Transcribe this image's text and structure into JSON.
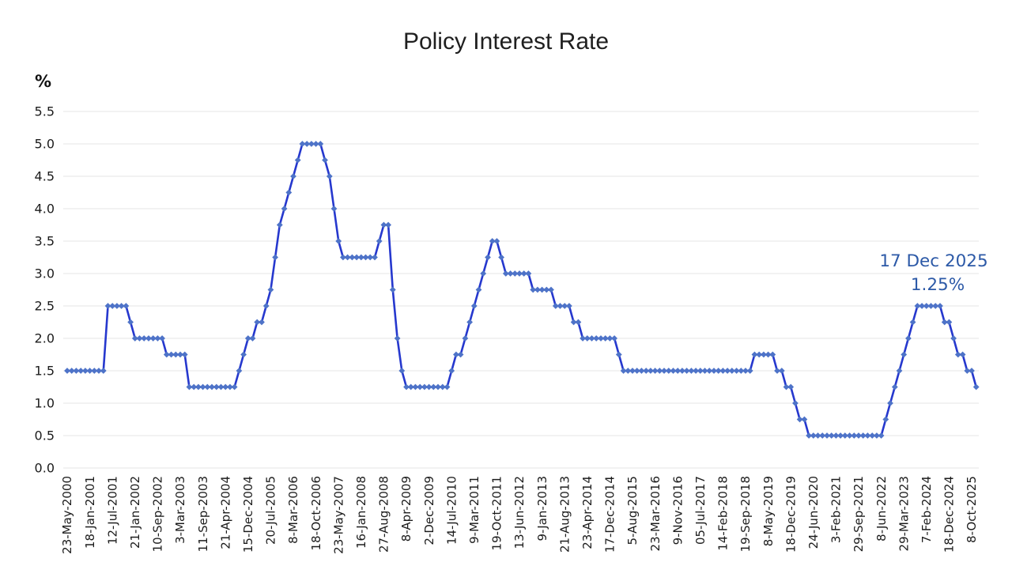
{
  "chart_data": {
    "type": "line",
    "title": "Policy Interest Rate",
    "y_unit_label": "%",
    "xlabel": "",
    "ylabel": "%",
    "ylim": [
      0.0,
      5.5
    ],
    "grid": "horizontal",
    "legend": "none",
    "y_ticks": [
      "0.0",
      "0.5",
      "1.0",
      "1.5",
      "2.0",
      "2.5",
      "3.0",
      "3.5",
      "4.0",
      "4.5",
      "5.0",
      "5.5"
    ],
    "x_tick_labels": [
      "23-May-2000",
      "18-Jan-2001",
      "12-Jul-2001",
      "21-Jan-2002",
      "10-Sep-2002",
      "3-Mar-2003",
      "11-Sep-2003",
      "21-Apr-2004",
      "15-Dec-2004",
      "20-Jul-2005",
      "8-Mar-2006",
      "18-Oct-2006",
      "23-May-2007",
      "16-Jan-2008",
      "27-Aug-2008",
      "8-Apr-2009",
      "2-Dec-2009",
      "14-Jul-2010",
      "9-Mar-2011",
      "19-Oct-2011",
      "13-Jun-2012",
      "9-Jan-2013",
      "21-Aug-2013",
      "23-Apr-2014",
      "17-Dec-2014",
      "5-Aug-2015",
      "23-Mar-2016",
      "9-Nov-2016",
      "05-Jul-2017",
      "14-Feb-2018",
      "19-Sep-2018",
      "8-May-2019",
      "18-Dec-2019",
      "24-Jun-2020",
      "3-Feb-2021",
      "29-Sep-2021",
      "8-Jun-2022",
      "29-Mar-2023",
      "7-Feb-2024",
      "18-Dec-2024",
      "8-Oct-2025"
    ],
    "label_every_n_points": 5,
    "series": [
      {
        "name": "Policy Interest Rate (%)",
        "values_runs": [
          {
            "v": 1.5,
            "n": 9
          },
          {
            "v": 2.5,
            "n": 5
          },
          {
            "v": 2.25,
            "n": 1
          },
          {
            "v": 2.0,
            "n": 7
          },
          {
            "v": 1.75,
            "n": 5
          },
          {
            "v": 1.25,
            "n": 11
          },
          {
            "v": 1.5,
            "n": 1
          },
          {
            "v": 1.75,
            "n": 1
          },
          {
            "v": 2.0,
            "n": 2
          },
          {
            "v": 2.25,
            "n": 2
          },
          {
            "v": 2.5,
            "n": 1
          },
          {
            "v": 2.75,
            "n": 1
          },
          {
            "v": 3.25,
            "n": 1
          },
          {
            "v": 3.75,
            "n": 1
          },
          {
            "v": 4.0,
            "n": 1
          },
          {
            "v": 4.25,
            "n": 1
          },
          {
            "v": 4.5,
            "n": 1
          },
          {
            "v": 4.75,
            "n": 1
          },
          {
            "v": 5.0,
            "n": 5
          },
          {
            "v": 4.75,
            "n": 1
          },
          {
            "v": 4.5,
            "n": 1
          },
          {
            "v": 4.0,
            "n": 1
          },
          {
            "v": 3.5,
            "n": 1
          },
          {
            "v": 3.25,
            "n": 8
          },
          {
            "v": 3.5,
            "n": 1
          },
          {
            "v": 3.75,
            "n": 2
          },
          {
            "v": 2.75,
            "n": 1
          },
          {
            "v": 2.0,
            "n": 1
          },
          {
            "v": 1.5,
            "n": 1
          },
          {
            "v": 1.25,
            "n": 10
          },
          {
            "v": 1.5,
            "n": 1
          },
          {
            "v": 1.75,
            "n": 2
          },
          {
            "v": 2.0,
            "n": 1
          },
          {
            "v": 2.25,
            "n": 1
          },
          {
            "v": 2.5,
            "n": 1
          },
          {
            "v": 2.75,
            "n": 1
          },
          {
            "v": 3.0,
            "n": 1
          },
          {
            "v": 3.25,
            "n": 1
          },
          {
            "v": 3.5,
            "n": 2
          },
          {
            "v": 3.25,
            "n": 1
          },
          {
            "v": 3.0,
            "n": 6
          },
          {
            "v": 2.75,
            "n": 5
          },
          {
            "v": 2.5,
            "n": 4
          },
          {
            "v": 2.25,
            "n": 2
          },
          {
            "v": 2.0,
            "n": 8
          },
          {
            "v": 1.75,
            "n": 1
          },
          {
            "v": 1.5,
            "n": 29
          },
          {
            "v": 1.75,
            "n": 5
          },
          {
            "v": 1.5,
            "n": 2
          },
          {
            "v": 1.25,
            "n": 2
          },
          {
            "v": 1.0,
            "n": 1
          },
          {
            "v": 0.75,
            "n": 2
          },
          {
            "v": 0.5,
            "n": 17
          },
          {
            "v": 0.75,
            "n": 1
          },
          {
            "v": 1.0,
            "n": 1
          },
          {
            "v": 1.25,
            "n": 1
          },
          {
            "v": 1.5,
            "n": 1
          },
          {
            "v": 1.75,
            "n": 1
          },
          {
            "v": 2.0,
            "n": 1
          },
          {
            "v": 2.25,
            "n": 1
          },
          {
            "v": 2.5,
            "n": 6
          },
          {
            "v": 2.25,
            "n": 2
          },
          {
            "v": 2.0,
            "n": 1
          },
          {
            "v": 1.75,
            "n": 2
          },
          {
            "v": 1.5,
            "n": 2
          },
          {
            "v": 1.25,
            "n": 1
          }
        ]
      }
    ],
    "annotation": {
      "line1": "17 Dec 2025",
      "line2": "1.25%",
      "refers_to": "last data point"
    },
    "colors": {
      "line": "#2638CE",
      "marker": "#4E73C8",
      "grid": "#E5E5E5",
      "annotation_text": "#2C59A7",
      "title_text": "#1F1F1F",
      "tick_text": "#1C1C1C"
    }
  }
}
